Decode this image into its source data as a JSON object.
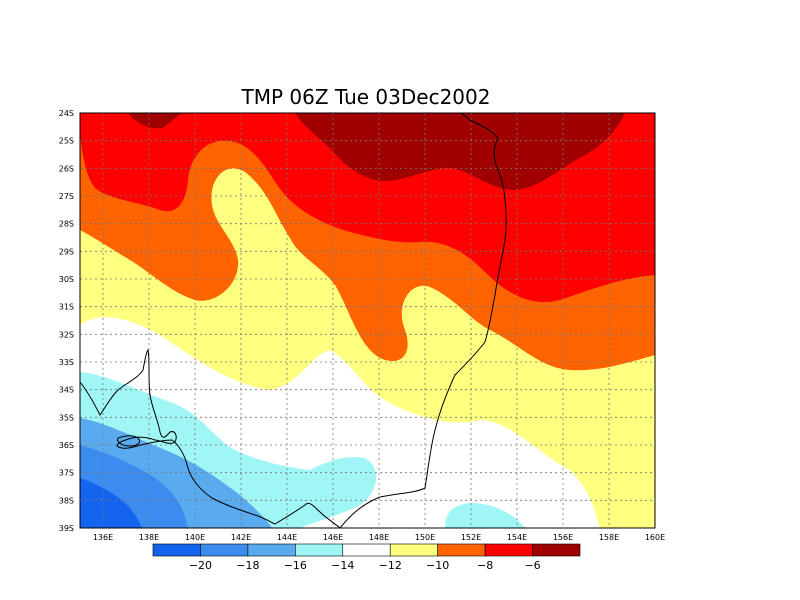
{
  "title": "TMP 06Z Tue 03Dec2002",
  "map": {
    "lon_range": [
      135,
      160
    ],
    "lat_range": [
      -39,
      -24
    ],
    "lon_ticks": [
      {
        "value": 136,
        "label": "136E"
      },
      {
        "value": 138,
        "label": "138E"
      },
      {
        "value": 140,
        "label": "140E"
      },
      {
        "value": 142,
        "label": "142E"
      },
      {
        "value": 144,
        "label": "144E"
      },
      {
        "value": 146,
        "label": "146E"
      },
      {
        "value": 148,
        "label": "148E"
      },
      {
        "value": 150,
        "label": "150E"
      },
      {
        "value": 152,
        "label": "152E"
      },
      {
        "value": 154,
        "label": "154E"
      },
      {
        "value": 156,
        "label": "156E"
      },
      {
        "value": 158,
        "label": "158E"
      },
      {
        "value": 160,
        "label": "160E"
      }
    ],
    "lat_ticks": [
      {
        "value": -24,
        "label": "24S"
      },
      {
        "value": -25,
        "label": "25S"
      },
      {
        "value": -26,
        "label": "26S"
      },
      {
        "value": -27,
        "label": "27S"
      },
      {
        "value": -28,
        "label": "28S"
      },
      {
        "value": -29,
        "label": "29S"
      },
      {
        "value": -30,
        "label": "30S"
      },
      {
        "value": -31,
        "label": "31S"
      },
      {
        "value": -32,
        "label": "32S"
      },
      {
        "value": -33,
        "label": "33S"
      },
      {
        "value": -34,
        "label": "34S"
      },
      {
        "value": -35,
        "label": "35S"
      },
      {
        "value": -36,
        "label": "36S"
      },
      {
        "value": -37,
        "label": "37S"
      },
      {
        "value": -38,
        "label": "38S"
      },
      {
        "value": -39,
        "label": "39S"
      }
    ],
    "grid": "dotted"
  },
  "colorbar": {
    "colors": [
      "#1464f0",
      "#3c8cf0",
      "#5aaaf0",
      "#a0f5f5",
      "#ffffff",
      "#ffff80",
      "#ff6400",
      "#ff0000",
      "#a00000"
    ],
    "labels": [
      "−20",
      "−18",
      "−16",
      "−14",
      "−12",
      "−10",
      "−8",
      "−6"
    ]
  },
  "bands": [
    {
      "level": "-21 to -20",
      "color": "#1464f0"
    },
    {
      "level": "-20 to -18",
      "color": "#3c8cf0"
    },
    {
      "level": "-18 to -16",
      "color": "#5aaaf0"
    },
    {
      "level": "-16 to -14",
      "color": "#a0f5f5"
    },
    {
      "level": "-14 to -12",
      "color": "#ffffff"
    },
    {
      "level": "-12 to -10",
      "color": "#ffff80"
    },
    {
      "level": "-10 to -8",
      "color": "#ff6400"
    },
    {
      "level": "-8 to -6",
      "color": "#ff0000"
    },
    {
      "level": "above -6",
      "color": "#a00000"
    }
  ]
}
